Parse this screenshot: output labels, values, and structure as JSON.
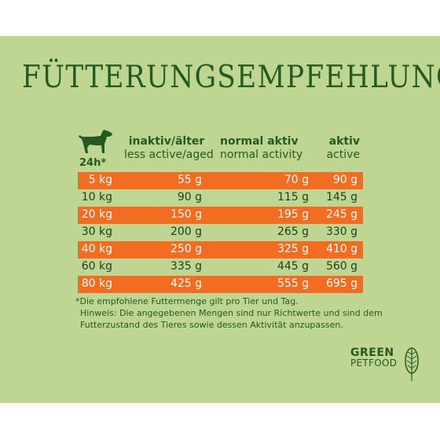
{
  "title": "FÜTTERUNGSEMPFEHLUNG",
  "per_day_label": "24h*",
  "columns": [
    {
      "de": "inaktiv/älter",
      "en": "less active/aged"
    },
    {
      "de": "normal aktiv",
      "en": "normal activity"
    },
    {
      "de": "aktiv",
      "en": "active"
    }
  ],
  "rows": [
    {
      "weight": "5 kg",
      "inactive": "55 g",
      "normal": "70 g",
      "active": "90 g",
      "highlight": true
    },
    {
      "weight": "10 kg",
      "inactive": "90 g",
      "normal": "115 g",
      "active": "145 g",
      "highlight": false
    },
    {
      "weight": "20 kg",
      "inactive": "150 g",
      "normal": "195 g",
      "active": "245 g",
      "highlight": true
    },
    {
      "weight": "30 kg",
      "inactive": "200 g",
      "normal": "265 g",
      "active": "330 g",
      "highlight": false
    },
    {
      "weight": "40 kg",
      "inactive": "250 g",
      "normal": "325 g",
      "active": "410 g",
      "highlight": true
    },
    {
      "weight": "60 kg",
      "inactive": "335 g",
      "normal": "445 g",
      "active": "560 g",
      "highlight": false
    },
    {
      "weight": "80 kg",
      "inactive": "425 g",
      "normal": "555 g",
      "active": "695 g",
      "highlight": true
    }
  ],
  "footnote": {
    "line1": "*Die empfohlene Futtermenge gilt pro Tier und Tag.",
    "line2": "Hinweis: Die angegebenen Mengen sind nur Richtwerte und sind dem",
    "line3": "Futterzustand des Tieres sowie dessen Aktivität anzupassen."
  },
  "brand": {
    "line1": "GREEN",
    "line2": "PETFOOD"
  },
  "colors": {
    "background": "#bfd693",
    "text": "#245a1f",
    "highlight": "#f26d21"
  },
  "icons": [
    "dog-icon",
    "leaf-logo-icon"
  ]
}
